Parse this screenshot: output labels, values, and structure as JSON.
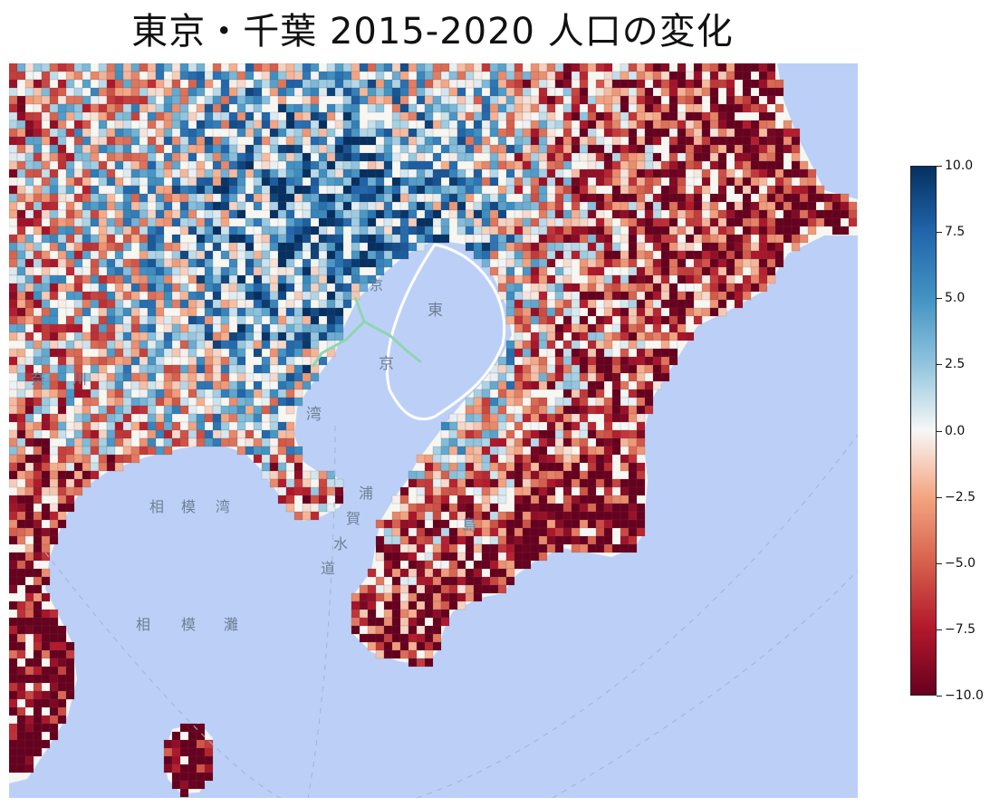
{
  "title": "東京・千葉 2015-2020 人口の変化",
  "colors": {
    "sea": "#bcd0f7",
    "land": "#f7f6f1",
    "negative_strong": "#67001f",
    "negative": "#b2182b",
    "neutral": "#f7f7f7",
    "positive": "#2166ac",
    "positive_strong": "#053061"
  },
  "map": {
    "tile_style": "light basemap with sea in light blue",
    "labels": {
      "tokyo_bay_1": "東",
      "tokyo_bay_2": "京",
      "tokyo_bay_3": "湾",
      "tokyo_bay_4": "京",
      "sagami_bay": [
        "相",
        "模",
        "湾"
      ],
      "sagami_nada": [
        "相",
        "模",
        "灘"
      ],
      "uraga_1": "浦",
      "uraga_2": "賀",
      "uraga_3": "水",
      "uraga_4": "道",
      "boso": "島",
      "kanagawa_1": "奈",
      "kanagawa_2": "川"
    }
  },
  "colorbar": {
    "ticks": [
      "10.0",
      "7.5",
      "5.0",
      "2.5",
      "0.0",
      "−2.5",
      "−5.0",
      "−7.5",
      "−10.0"
    ],
    "min": -10.0,
    "max": 10.0,
    "colormap": "RdBu"
  }
}
